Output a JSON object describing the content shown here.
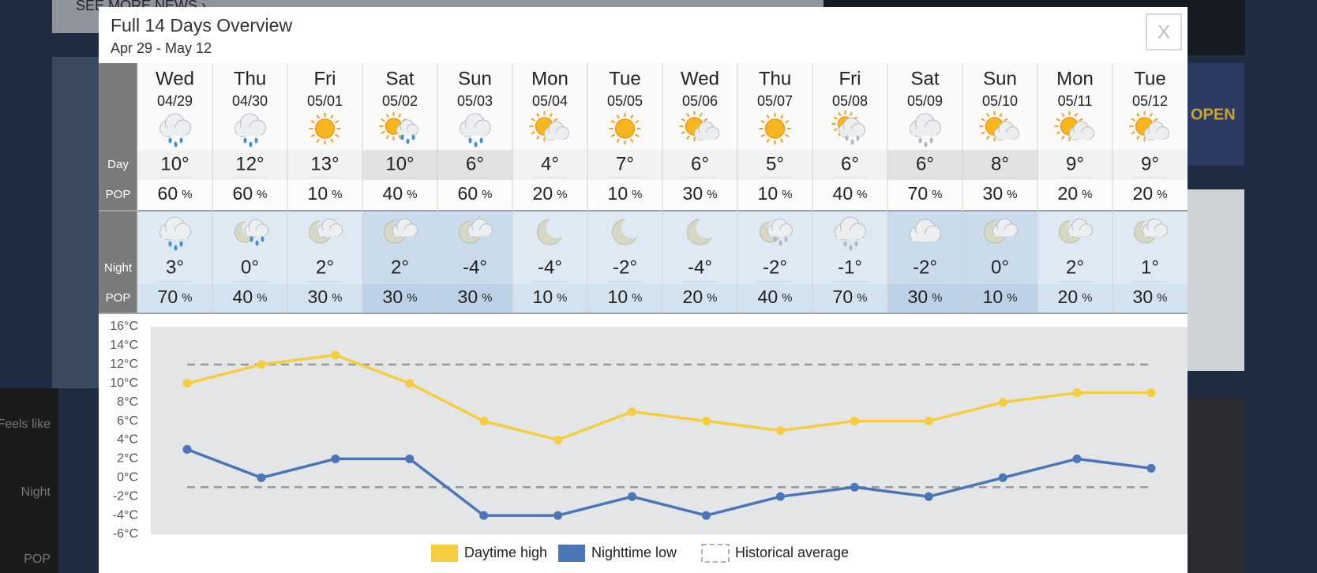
{
  "background": {
    "texts": [
      "SEE MORE NEWS ›",
      "Feels like",
      "Night",
      "POP",
      "OPEN"
    ]
  },
  "modal": {
    "title": "Full 14 Days Overview",
    "date_range": "Apr 29 - May 12",
    "close": "X",
    "row_labels": {
      "day": "Day",
      "day_pop": "POP",
      "night": "Night",
      "night_pop": "POP"
    },
    "pop_unit": "%",
    "days": [
      {
        "name": "Wed",
        "date": "04/29",
        "day_temp": "10°",
        "day_pop": 60,
        "night_temp": "3°",
        "night_pop": 70
      },
      {
        "name": "Thu",
        "date": "04/30",
        "day_temp": "12°",
        "day_pop": 60,
        "night_temp": "0°",
        "night_pop": 40
      },
      {
        "name": "Fri",
        "date": "05/01",
        "day_temp": "13°",
        "day_pop": 10,
        "night_temp": "2°",
        "night_pop": 30
      },
      {
        "name": "Sat",
        "date": "05/02",
        "day_temp": "10°",
        "day_pop": 40,
        "night_temp": "2°",
        "night_pop": 30
      },
      {
        "name": "Sun",
        "date": "05/03",
        "day_temp": "6°",
        "day_pop": 60,
        "night_temp": "-4°",
        "night_pop": 30
      },
      {
        "name": "Mon",
        "date": "05/04",
        "day_temp": "4°",
        "day_pop": 20,
        "night_temp": "-4°",
        "night_pop": 10
      },
      {
        "name": "Tue",
        "date": "05/05",
        "day_temp": "7°",
        "day_pop": 10,
        "night_temp": "-2°",
        "night_pop": 10
      },
      {
        "name": "Wed",
        "date": "05/06",
        "day_temp": "6°",
        "day_pop": 30,
        "night_temp": "-4°",
        "night_pop": 20
      },
      {
        "name": "Thu",
        "date": "05/07",
        "day_temp": "5°",
        "day_pop": 10,
        "night_temp": "-2°",
        "night_pop": 40
      },
      {
        "name": "Fri",
        "date": "05/08",
        "day_temp": "6°",
        "day_pop": 40,
        "night_temp": "-1°",
        "night_pop": 70
      },
      {
        "name": "Sat",
        "date": "05/09",
        "day_temp": "6°",
        "day_pop": 70,
        "night_temp": "-2°",
        "night_pop": 30
      },
      {
        "name": "Sun",
        "date": "05/10",
        "day_temp": "8°",
        "day_pop": 30,
        "night_temp": "0°",
        "night_pop": 10
      },
      {
        "name": "Mon",
        "date": "05/11",
        "day_temp": "9°",
        "day_pop": 20,
        "night_temp": "2°",
        "night_pop": 20
      },
      {
        "name": "Tue",
        "date": "05/12",
        "day_temp": "9°",
        "day_pop": 20,
        "night_temp": "1°",
        "night_pop": 30
      }
    ]
  },
  "chart_data": {
    "type": "line",
    "series": [
      {
        "name": "Daytime high",
        "color": "#f5cd3f",
        "values": [
          10,
          12,
          13,
          10,
          6,
          4,
          7,
          6,
          5,
          6,
          6,
          8,
          9,
          9
        ]
      },
      {
        "name": "Nighttime low",
        "color": "#4a76b8",
        "values": [
          3,
          0,
          2,
          2,
          -4,
          -4,
          -2,
          -4,
          -2,
          -1,
          -2,
          0,
          2,
          1
        ]
      }
    ],
    "reference_lines": {
      "name": "Historical average",
      "color": "#999999",
      "values": [
        12,
        -1
      ]
    },
    "ylim": [
      -6,
      16
    ],
    "yticks": [
      {
        "value": 16,
        "label": "16°C"
      },
      {
        "value": 14,
        "label": "14°C"
      },
      {
        "value": 12,
        "label": "12°C"
      },
      {
        "value": 10,
        "label": "10°C"
      },
      {
        "value": 8,
        "label": "8°C"
      },
      {
        "value": 6,
        "label": "6°C"
      },
      {
        "value": 4,
        "label": "4°C"
      },
      {
        "value": 2,
        "label": "2°C"
      },
      {
        "value": 0,
        "label": "0°C"
      },
      {
        "value": -2,
        "label": "-2°C"
      },
      {
        "value": -4,
        "label": "-4°C"
      },
      {
        "value": -6,
        "label": "-6°C"
      }
    ],
    "grid": false
  }
}
